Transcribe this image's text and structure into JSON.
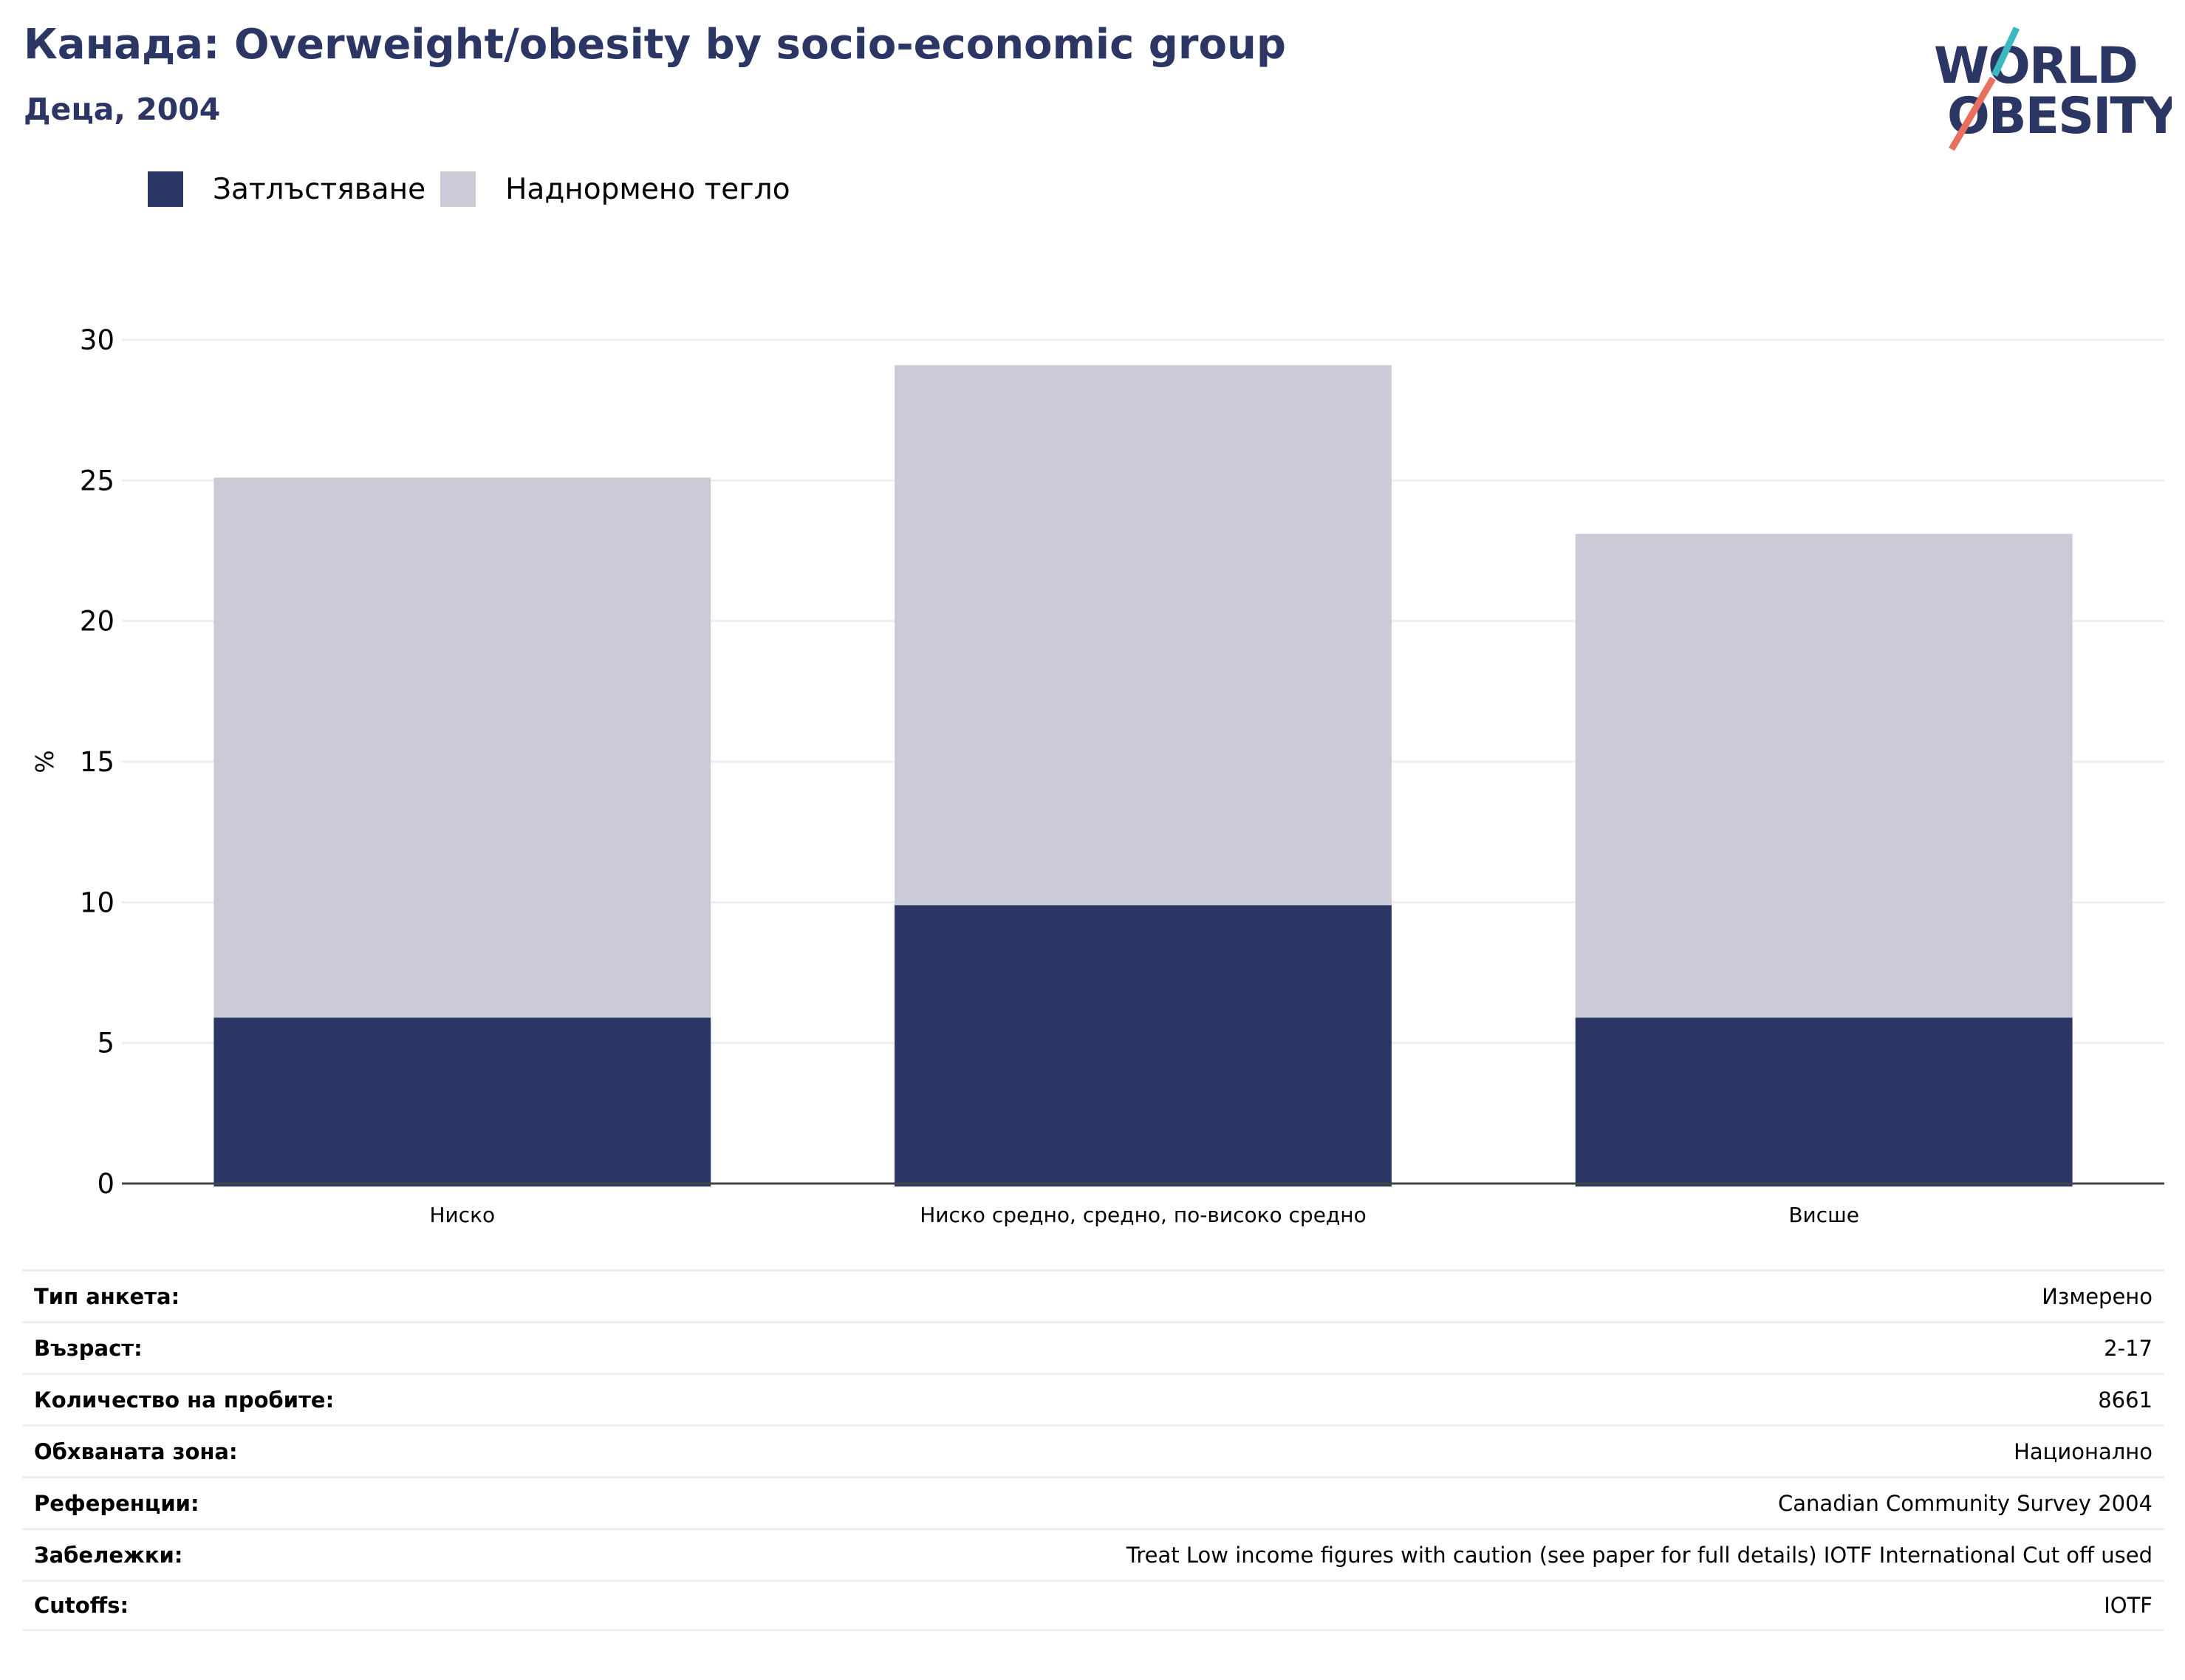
{
  "header": {
    "title": "Канада: Overweight/obesity by socio-economic group",
    "subtitle": "Деца, 2004"
  },
  "logo": {
    "line1": "WORLD",
    "line2": "OBESITY"
  },
  "colors": {
    "obesity": "#2b3664",
    "overweight": "#cacbd7",
    "brand": "#2b3664",
    "logo_teal": "#3bb8c0",
    "logo_coral": "#e8705f"
  },
  "legend": [
    {
      "label": "Затлъстяване",
      "color": "#2b3664"
    },
    {
      "label": "Наднормено тегло",
      "color": "#cacbd7"
    }
  ],
  "chart_data": {
    "type": "bar",
    "stacked": true,
    "categories": [
      "Ниско",
      "Ниско средно, средно, по-високо средно",
      "Висше"
    ],
    "series": [
      {
        "name": "Затлъстяване",
        "values": [
          5.9,
          9.9,
          5.9
        ]
      },
      {
        "name": "Наднормено тегло",
        "values": [
          19.2,
          19.2,
          17.2
        ]
      }
    ],
    "ylabel": "%",
    "ylim": [
      0,
      30
    ],
    "yticks": [
      0,
      5,
      10,
      15,
      20,
      25,
      30
    ],
    "grid": true,
    "legend_position": "top-left"
  },
  "info": [
    {
      "key": "Тип анкета:",
      "value": "Измерено"
    },
    {
      "key": "Възраст:",
      "value": "2-17"
    },
    {
      "key": "Количество на пробите:",
      "value": "8661"
    },
    {
      "key": "Обхваната зона:",
      "value": "Национално"
    },
    {
      "key": "Референции:",
      "value": "Canadian Community Survey 2004"
    },
    {
      "key": "Забележки:",
      "value": "Treat Low income figures with caution (see paper for full details) IOTF International Cut off used"
    },
    {
      "key": "Cutoffs:",
      "value": "IOTF"
    }
  ]
}
